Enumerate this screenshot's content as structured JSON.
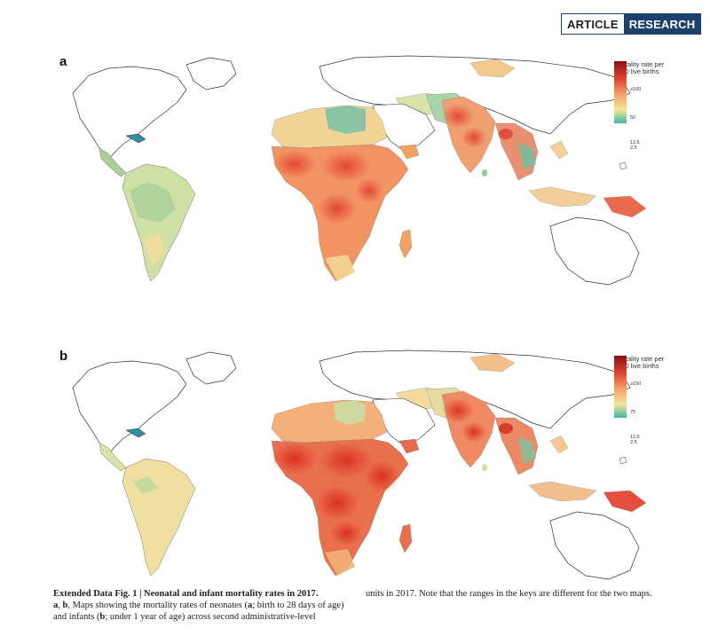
{
  "header": {
    "badge_left": "ARTICLE",
    "badge_right": "RESEARCH"
  },
  "colors": {
    "badge_blue": "#1d3f6e",
    "low": "#3fb6a8",
    "mid": "#f2e49a",
    "high": "#e04a35",
    "max": "#8c0f14"
  },
  "panels": [
    {
      "label": "a",
      "measure": "neonatal mortality",
      "legend": {
        "title": "Mortality rate per 1000 live births",
        "ticks": [
          "≥100",
          "50",
          "12.5",
          "2.5"
        ]
      }
    },
    {
      "label": "b",
      "measure": "infant mortality",
      "legend": {
        "title": "Mortality rate per 1000 live births",
        "ticks": [
          "≥150",
          "75",
          "12.5",
          "2.5"
        ]
      }
    }
  ],
  "caption": {
    "title": "Extended Data Fig. 1 | Neonatal and infant mortality rates in 2017.",
    "body_left_a": "a",
    "body_left_1": ", ",
    "body_left_b": "b",
    "body_left_2": ", Maps showing the mortality rates of neonates (",
    "body_left_a2": "a",
    "body_left_3": "; birth to 28 days of age) and infants (",
    "body_left_b2": "b",
    "body_left_4": "; under 1 year of age) across second administrative-level",
    "body_right": "units in 2017. Note that the ranges in the keys are different for the two maps."
  }
}
